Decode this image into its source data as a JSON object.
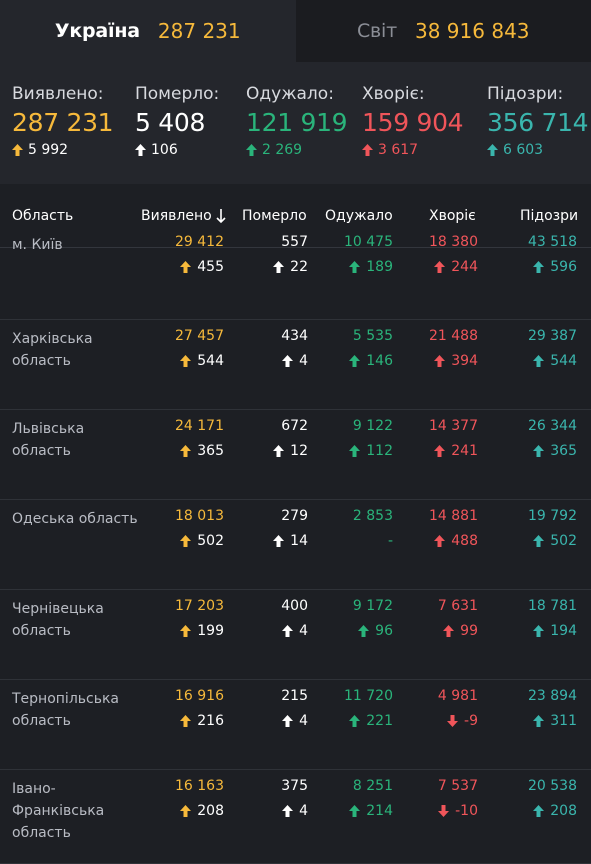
{
  "tabs": [
    {
      "label": "Україна",
      "value": "287 231"
    },
    {
      "label": "Світ",
      "value": "38 916 843"
    }
  ],
  "summary": [
    {
      "label": "Виявлено:",
      "value": "287 231",
      "delta": "5 992",
      "dir": "up",
      "color": "orange"
    },
    {
      "label": "Померло:",
      "value": "5 408",
      "delta": "106",
      "dir": "up",
      "color": "white"
    },
    {
      "label": "Одужало:",
      "value": "121 919",
      "delta": "2 269",
      "dir": "up",
      "color": "green"
    },
    {
      "label": "Хворіє:",
      "value": "159 904",
      "delta": "3 617",
      "dir": "up",
      "color": "red"
    },
    {
      "label": "Підозри:",
      "value": "356 714",
      "delta": "6 603",
      "dir": "up",
      "color": "teal"
    }
  ],
  "table": {
    "headers": [
      "Область",
      "Виявлено",
      "Померло",
      "Одужало",
      "Хворіє",
      "Підозри"
    ],
    "sort_icon": "sort-down-arrow-icon",
    "rows": [
      {
        "region": "м. Київ",
        "detected": "29 412",
        "detected_d": "455",
        "died": "557",
        "died_d": "22",
        "recovered": "10 475",
        "recovered_d": "189",
        "sick": "18 380",
        "sick_d": "244",
        "sick_dir": "up",
        "suspect": "43 518",
        "suspect_d": "596"
      },
      {
        "region": "Харківська область",
        "detected": "27 457",
        "detected_d": "544",
        "died": "434",
        "died_d": "4",
        "recovered": "5 535",
        "recovered_d": "146",
        "sick": "21 488",
        "sick_d": "394",
        "sick_dir": "up",
        "suspect": "29 387",
        "suspect_d": "544"
      },
      {
        "region": "Львівська область",
        "detected": "24 171",
        "detected_d": "365",
        "died": "672",
        "died_d": "12",
        "recovered": "9 122",
        "recovered_d": "112",
        "sick": "14 377",
        "sick_d": "241",
        "sick_dir": "up",
        "suspect": "26 344",
        "suspect_d": "365"
      },
      {
        "region": "Одеська область",
        "detected": "18 013",
        "detected_d": "502",
        "died": "279",
        "died_d": "14",
        "recovered": "2 853",
        "recovered_d": "-",
        "sick": "14 881",
        "sick_d": "488",
        "sick_dir": "up",
        "suspect": "19 792",
        "suspect_d": "502"
      },
      {
        "region": "Чернівецька область",
        "detected": "17 203",
        "detected_d": "199",
        "died": "400",
        "died_d": "4",
        "recovered": "9 172",
        "recovered_d": "96",
        "sick": "7 631",
        "sick_d": "99",
        "sick_dir": "up",
        "suspect": "18 781",
        "suspect_d": "194"
      },
      {
        "region": "Тернопільська область",
        "detected": "16 916",
        "detected_d": "216",
        "died": "215",
        "died_d": "4",
        "recovered": "11 720",
        "recovered_d": "221",
        "sick": "4 981",
        "sick_d": "-9",
        "sick_dir": "down",
        "suspect": "23 894",
        "suspect_d": "311"
      },
      {
        "region": "Івано-Франківська область",
        "detected": "16 163",
        "detected_d": "208",
        "died": "375",
        "died_d": "4",
        "recovered": "8 251",
        "recovered_d": "214",
        "sick": "7 537",
        "sick_d": "-10",
        "sick_dir": "down",
        "suspect": "20 538",
        "suspect_d": "208"
      }
    ]
  },
  "colors": {
    "orange": "#f6b93b",
    "white": "#ffffff",
    "green": "#2ab47b",
    "red": "#f0555a",
    "teal": "#3ab5ad",
    "background": "#24262c"
  }
}
